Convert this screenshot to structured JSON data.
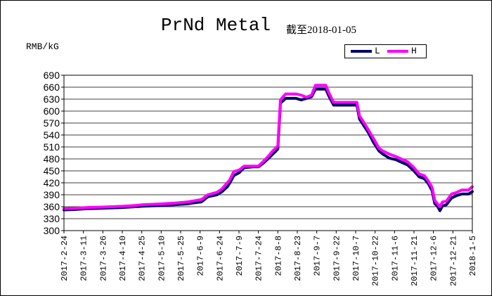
{
  "chart_data": {
    "type": "line",
    "title": "PrNd Metal",
    "subtitle": "截至2018-01-05",
    "ylabel": "RMB/kG",
    "xlabel": "",
    "ylim": [
      300,
      690
    ],
    "yticks": [
      300,
      330,
      360,
      390,
      420,
      450,
      480,
      510,
      540,
      570,
      600,
      630,
      660,
      690
    ],
    "xlim": [
      "2017-02-24",
      "2018-01-05"
    ],
    "xticks": [
      "2017-2-24",
      "2017-3-11",
      "2017-3-26",
      "2017-4-10",
      "2017-4-25",
      "2017-5-10",
      "2017-5-25",
      "2017-6-9",
      "2017-6-24",
      "2017-7-9",
      "2017-7-24",
      "2017-8-8",
      "2017-8-23",
      "2017-9-7",
      "2017-9-22",
      "2017-10-7",
      "2017-10-22",
      "2017-11-6",
      "2017-11-21",
      "2017-12-6",
      "2017-12-21",
      "2018-1-5"
    ],
    "grid": "horizontal",
    "legend_position": "top-right",
    "series": [
      {
        "name": "L",
        "color": "#000066",
        "x": [
          "2017-02-24",
          "2017-03-04",
          "2017-03-14",
          "2017-03-24",
          "2017-04-10",
          "2017-04-20",
          "2017-04-25",
          "2017-05-10",
          "2017-05-20",
          "2017-05-30",
          "2017-06-05",
          "2017-06-10",
          "2017-06-15",
          "2017-06-22",
          "2017-06-26",
          "2017-06-30",
          "2017-07-02",
          "2017-07-05",
          "2017-07-09",
          "2017-07-13",
          "2017-07-20",
          "2017-07-24",
          "2017-07-28",
          "2017-08-01",
          "2017-08-04",
          "2017-08-06",
          "2017-08-08",
          "2017-08-10",
          "2017-08-14",
          "2017-08-22",
          "2017-08-26",
          "2017-08-30",
          "2017-09-03",
          "2017-09-06",
          "2017-09-10",
          "2017-09-14",
          "2017-09-16",
          "2017-09-20",
          "2017-10-08",
          "2017-10-10",
          "2017-10-14",
          "2017-10-17",
          "2017-10-21",
          "2017-10-25",
          "2017-10-28",
          "2017-11-02",
          "2017-11-07",
          "2017-11-11",
          "2017-11-16",
          "2017-11-21",
          "2017-11-25",
          "2017-11-29",
          "2017-12-02",
          "2017-12-05",
          "2017-12-07",
          "2017-12-09",
          "2017-12-11",
          "2017-12-13",
          "2017-12-16",
          "2017-12-20",
          "2017-12-24",
          "2017-12-28",
          "2018-01-02",
          "2018-01-05"
        ],
        "values": [
          352,
          353,
          355,
          356,
          358,
          360,
          361,
          363,
          365,
          367,
          370,
          372,
          385,
          390,
          398,
          410,
          420,
          438,
          445,
          458,
          460,
          460,
          470,
          482,
          492,
          498,
          505,
          620,
          632,
          632,
          628,
          632,
          636,
          655,
          655,
          655,
          640,
          615,
          615,
          580,
          560,
          545,
          520,
          500,
          492,
          482,
          478,
          472,
          465,
          450,
          435,
          430,
          418,
          400,
          368,
          362,
          350,
          362,
          365,
          382,
          388,
          392,
          392,
          398
        ]
      },
      {
        "name": "H",
        "color": "#ff00ff",
        "x": [
          "2017-02-24",
          "2017-03-04",
          "2017-03-14",
          "2017-03-24",
          "2017-04-10",
          "2017-04-20",
          "2017-04-25",
          "2017-05-10",
          "2017-05-20",
          "2017-05-30",
          "2017-06-05",
          "2017-06-10",
          "2017-06-15",
          "2017-06-22",
          "2017-06-26",
          "2017-06-30",
          "2017-07-02",
          "2017-07-05",
          "2017-07-09",
          "2017-07-13",
          "2017-07-20",
          "2017-07-24",
          "2017-07-28",
          "2017-08-01",
          "2017-08-04",
          "2017-08-06",
          "2017-08-08",
          "2017-08-10",
          "2017-08-14",
          "2017-08-22",
          "2017-08-26",
          "2017-08-30",
          "2017-09-03",
          "2017-09-06",
          "2017-09-10",
          "2017-09-14",
          "2017-09-16",
          "2017-09-20",
          "2017-10-08",
          "2017-10-10",
          "2017-10-14",
          "2017-10-17",
          "2017-10-21",
          "2017-10-25",
          "2017-10-28",
          "2017-11-02",
          "2017-11-07",
          "2017-11-11",
          "2017-11-16",
          "2017-11-21",
          "2017-11-25",
          "2017-11-29",
          "2017-12-02",
          "2017-12-05",
          "2017-12-07",
          "2017-12-09",
          "2017-12-11",
          "2017-12-13",
          "2017-12-16",
          "2017-12-20",
          "2017-12-24",
          "2017-12-28",
          "2018-01-02",
          "2018-01-05"
        ],
        "values": [
          355,
          356,
          358,
          359,
          361,
          363,
          365,
          367,
          369,
          372,
          375,
          378,
          390,
          396,
          405,
          420,
          428,
          448,
          452,
          462,
          462,
          462,
          474,
          488,
          500,
          506,
          513,
          628,
          643,
          643,
          640,
          635,
          640,
          665,
          665,
          665,
          648,
          622,
          622,
          588,
          568,
          552,
          530,
          507,
          500,
          492,
          486,
          480,
          473,
          458,
          442,
          438,
          425,
          408,
          376,
          368,
          360,
          372,
          374,
          392,
          396,
          402,
          402,
          410
        ]
      }
    ]
  }
}
